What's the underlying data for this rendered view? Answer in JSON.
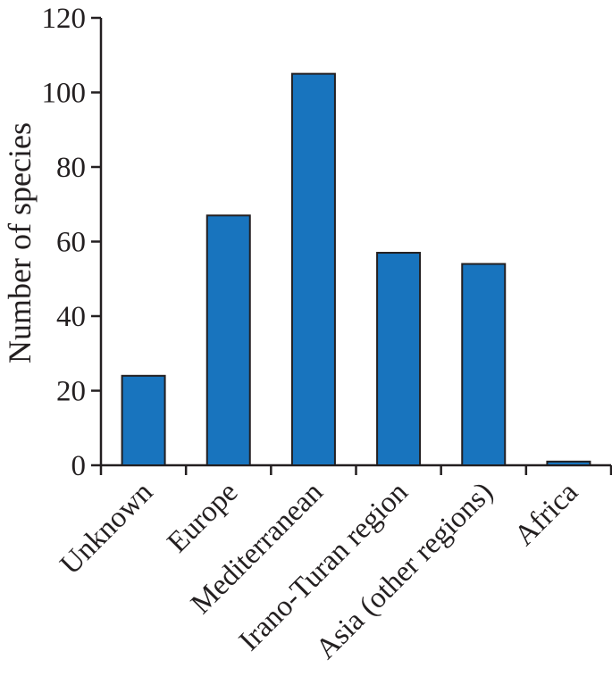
{
  "chart_data": {
    "type": "bar",
    "categories": [
      "Unknown",
      "Europe",
      "Mediterranean",
      "Irano-Turan region",
      "Asia (other regions)",
      "Africa"
    ],
    "values": [
      24,
      67,
      105,
      57,
      54,
      1
    ],
    "title": "",
    "xlabel": "",
    "ylabel": "Number of species",
    "ylim": [
      0,
      120
    ],
    "yticks": [
      0,
      20,
      40,
      60,
      80,
      100,
      120
    ],
    "grid": false,
    "bar_color": "#1874be",
    "bar_edge_color": "#231f20"
  }
}
